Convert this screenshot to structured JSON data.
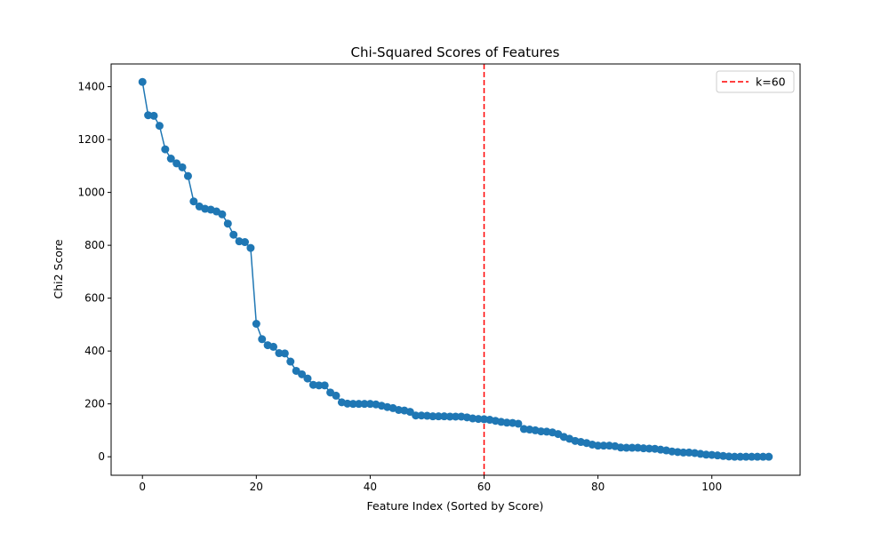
{
  "chart_data": {
    "type": "line",
    "title": "Chi-Squared Scores of Features",
    "xlabel": "Feature Index (Sorted by Score)",
    "ylabel": "Chi2 Score",
    "xlim": [
      -5.5,
      115.5
    ],
    "ylim": [
      -70,
      1486
    ],
    "xticks": [
      0,
      20,
      40,
      60,
      80,
      100
    ],
    "yticks": [
      0,
      200,
      400,
      600,
      800,
      1000,
      1200,
      1400
    ],
    "grid": false,
    "legend_position": "top-right",
    "series": [
      {
        "name": "Chi2 Score",
        "color": "#1f77b4",
        "marker": "circle",
        "x": [
          0,
          1,
          2,
          3,
          4,
          5,
          6,
          7,
          8,
          9,
          10,
          11,
          12,
          13,
          14,
          15,
          16,
          17,
          18,
          19,
          20,
          21,
          22,
          23,
          24,
          25,
          26,
          27,
          28,
          29,
          30,
          31,
          32,
          33,
          34,
          35,
          36,
          37,
          38,
          39,
          40,
          41,
          42,
          43,
          44,
          45,
          46,
          47,
          48,
          49,
          50,
          51,
          52,
          53,
          54,
          55,
          56,
          57,
          58,
          59,
          60,
          61,
          62,
          63,
          64,
          65,
          66,
          67,
          68,
          69,
          70,
          71,
          72,
          73,
          74,
          75,
          76,
          77,
          78,
          79,
          80,
          81,
          82,
          83,
          84,
          85,
          86,
          87,
          88,
          89,
          90,
          91,
          92,
          93,
          94,
          95,
          96,
          97,
          98,
          99,
          100,
          101,
          102,
          103,
          104,
          105,
          106,
          107,
          108,
          109,
          110
        ],
        "y": [
          1418,
          1292,
          1290,
          1252,
          1163,
          1128,
          1110,
          1095,
          1062,
          966,
          947,
          938,
          935,
          928,
          917,
          882,
          840,
          815,
          812,
          790,
          503,
          445,
          422,
          416,
          392,
          391,
          360,
          325,
          312,
          296,
          272,
          270,
          270,
          243,
          231,
          206,
          201,
          200,
          200,
          200,
          200,
          198,
          193,
          188,
          184,
          177,
          175,
          170,
          156,
          156,
          155,
          153,
          153,
          153,
          152,
          152,
          152,
          149,
          145,
          143,
          142,
          140,
          136,
          132,
          129,
          128,
          125,
          105,
          103,
          100,
          96,
          95,
          92,
          86,
          75,
          68,
          60,
          56,
          52,
          46,
          42,
          42,
          42,
          40,
          35,
          34,
          34,
          34,
          32,
          31,
          30,
          27,
          24,
          20,
          18,
          16,
          16,
          14,
          11,
          8,
          7,
          5,
          3,
          1,
          0,
          0,
          0,
          0,
          0,
          0,
          0
        ]
      },
      {
        "name": "k=60",
        "type": "vline",
        "x": 60,
        "color": "#ff0000",
        "style": "dashed"
      }
    ],
    "legend": [
      "k=60"
    ]
  }
}
